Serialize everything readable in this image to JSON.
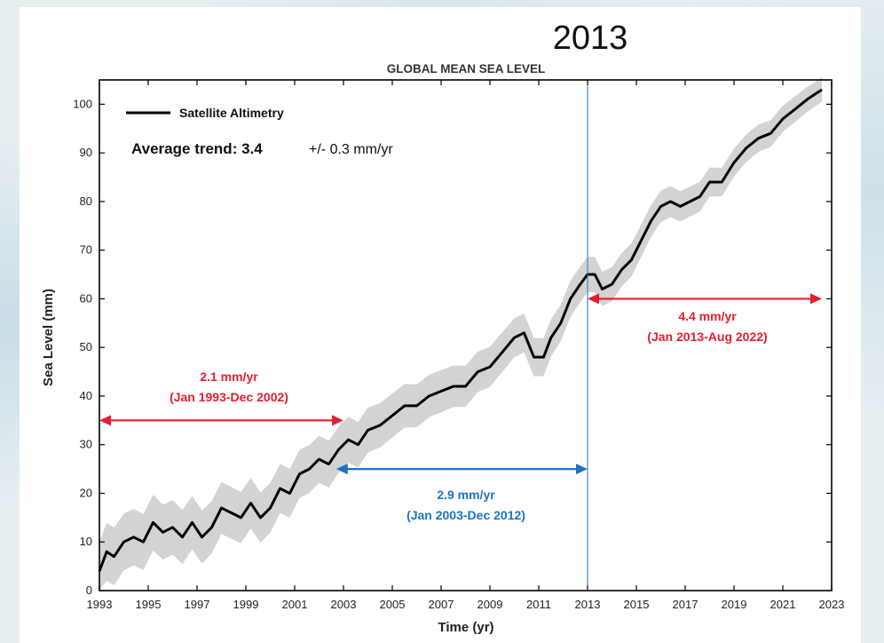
{
  "chart_data": {
    "type": "line",
    "title": "GLOBAL MEAN SEA LEVEL",
    "highlight_label": "2013",
    "highlight_x": 2013.0,
    "xlabel": "Time (yr)",
    "ylabel": "Sea Level (mm)",
    "xlim": [
      1993,
      2023
    ],
    "ylim": [
      0,
      105
    ],
    "x_ticks": [
      "1993",
      "1995",
      "1997",
      "1999",
      "2001",
      "2003",
      "2005",
      "2007",
      "2009",
      "2011",
      "2013",
      "2015",
      "2017",
      "2019",
      "2021",
      "2023"
    ],
    "y_ticks": [
      "0",
      "10",
      "20",
      "30",
      "40",
      "50",
      "60",
      "70",
      "80",
      "90",
      "100"
    ],
    "grid": false,
    "legend_position": "top-left",
    "series": [
      {
        "name": "Satellite Altimetry",
        "color": "#000000",
        "uncertainty_color": "#d3d3d3",
        "x": [
          1993.0,
          1993.3,
          1993.6,
          1994.0,
          1994.4,
          1994.8,
          1995.2,
          1995.6,
          1996.0,
          1996.4,
          1996.8,
          1997.2,
          1997.6,
          1998.0,
          1998.4,
          1998.8,
          1999.2,
          1999.6,
          2000.0,
          2000.4,
          2000.8,
          2001.2,
          2001.6,
          2002.0,
          2002.4,
          2002.8,
          2003.2,
          2003.6,
          2004.0,
          2004.5,
          2005.0,
          2005.5,
          2006.0,
          2006.5,
          2007.0,
          2007.5,
          2008.0,
          2008.5,
          2009.0,
          2009.5,
          2010.0,
          2010.4,
          2010.8,
          2011.2,
          2011.5,
          2011.9,
          2012.3,
          2012.7,
          2013.0,
          2013.3,
          2013.6,
          2014.0,
          2014.4,
          2014.8,
          2015.2,
          2015.6,
          2016.0,
          2016.4,
          2016.8,
          2017.2,
          2017.6,
          2018.0,
          2018.5,
          2019.0,
          2019.5,
          2020.0,
          2020.5,
          2021.0,
          2021.5,
          2022.0,
          2022.3,
          2022.6
        ],
        "values": [
          4,
          8,
          7,
          10,
          11,
          10,
          14,
          12,
          13,
          11,
          14,
          11,
          13,
          17,
          16,
          15,
          18,
          15,
          17,
          21,
          20,
          24,
          25,
          27,
          26,
          29,
          31,
          30,
          33,
          34,
          36,
          38,
          38,
          40,
          41,
          42,
          42,
          45,
          46,
          49,
          52,
          53,
          48,
          48,
          52,
          55,
          60,
          63,
          65,
          65,
          62,
          63,
          66,
          68,
          72,
          76,
          79,
          80,
          79,
          80,
          81,
          84,
          84,
          88,
          91,
          93,
          94,
          97,
          99,
          101,
          102,
          103
        ]
      }
    ],
    "annotations": [
      {
        "line1": "Average trend: 3.4",
        "line2": "+/- 0.3 mm/yr"
      },
      {
        "line1": "2.1 mm/yr",
        "line2": "(Jan 1993-Dec 2002)",
        "color": "#e81c2e",
        "x_start": 1993.0,
        "x_end": 2003.0,
        "y": 35
      },
      {
        "line1": "2.9 mm/yr",
        "line2": "(Jan 2003-Dec 2012)",
        "color": "#1b74c4",
        "x_start": 2002.7,
        "x_end": 2013.0,
        "y": 25
      },
      {
        "line1": "4.4 mm/yr",
        "line2": "(Jan 2013-Aug 2022)",
        "color": "#e81c2e",
        "x_start": 2013.0,
        "x_end": 2022.6,
        "y": 60
      }
    ]
  }
}
